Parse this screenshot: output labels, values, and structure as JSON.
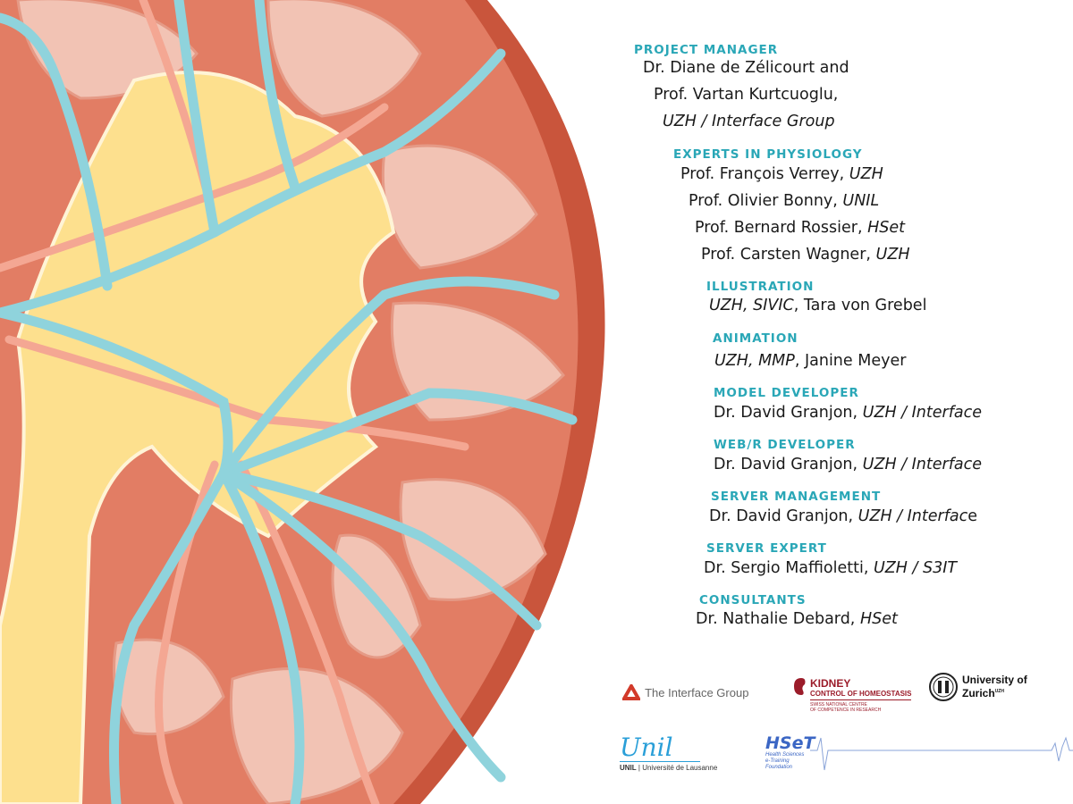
{
  "colors": {
    "heading": "#2aa7b7",
    "capsule": "#c9553c",
    "cortex": "#e27d64",
    "lobe": "#f2c3b4",
    "pelvis": "#fde08e",
    "vein": "#8fd3dc",
    "artery": "#f4a793"
  },
  "credits": [
    {
      "heading": "PROJECT MANAGER",
      "lines": [
        [
          {
            "t": "Dr. Diane de Zélicourt and",
            "i": false
          }
        ],
        [
          {
            "t": "Prof. Vartan Kurtcuoglu,",
            "i": false
          }
        ],
        [
          {
            "t": "UZH / Interface Group",
            "i": true
          }
        ]
      ]
    },
    {
      "heading": "EXPERTS IN PHYSIOLOGY",
      "lines": [
        [
          {
            "t": "Prof. François Verrey, ",
            "i": false
          },
          {
            "t": "UZH",
            "i": true
          }
        ],
        [
          {
            "t": "Prof. Olivier Bonny, ",
            "i": false
          },
          {
            "t": "UNIL",
            "i": true
          }
        ],
        [
          {
            "t": "Prof. Bernard Rossier, ",
            "i": false
          },
          {
            "t": "HSet",
            "i": true
          }
        ],
        [
          {
            "t": "Prof. Carsten Wagner, ",
            "i": false
          },
          {
            "t": "UZH",
            "i": true
          }
        ]
      ]
    },
    {
      "heading": "ILLUSTRATION",
      "lines": [
        [
          {
            "t": "UZH, SIVIC",
            "i": true
          },
          {
            "t": ", Tara von Grebel",
            "i": false
          }
        ]
      ]
    },
    {
      "heading": "ANIMATION",
      "lines": [
        [
          {
            "t": "UZH, MMP",
            "i": true
          },
          {
            "t": ", Janine Meyer",
            "i": false
          }
        ]
      ]
    },
    {
      "heading": "MODEL DEVELOPER",
      "lines": [
        [
          {
            "t": "Dr. David Granjon, ",
            "i": false
          },
          {
            "t": "UZH / Interface",
            "i": true
          }
        ]
      ]
    },
    {
      "heading": "WEB/R DEVELOPER",
      "lines": [
        [
          {
            "t": "Dr. David Granjon, ",
            "i": false
          },
          {
            "t": "UZH / Interface",
            "i": true
          }
        ]
      ]
    },
    {
      "heading": "SERVER MANAGEMENT",
      "lines": [
        [
          {
            "t": "Dr. David Granjon, ",
            "i": false
          },
          {
            "t": "UZH / Interfac",
            "i": true
          },
          {
            "t": "e",
            "i": false
          }
        ]
      ]
    },
    {
      "heading": "SERVER EXPERT",
      "lines": [
        [
          {
            "t": "Dr. Sergio Maffioletti, ",
            "i": false
          },
          {
            "t": "UZH / S3IT",
            "i": true
          }
        ]
      ]
    },
    {
      "heading": "CONSULTANTS",
      "lines": [
        [
          {
            "t": "Dr. Nathalie Debard, ",
            "i": false
          },
          {
            "t": "HSet",
            "i": true
          }
        ]
      ]
    }
  ],
  "logos": {
    "interface": "The Interface Group",
    "kidney_title": "KIDNEY",
    "kidney_sub": "CONTROL OF HOMEOSTASIS",
    "kidney_small1": "SWISS NATIONAL CENTRE",
    "kidney_small2": "OF COMPETENCE IN RESEARCH",
    "uzh1": "University of",
    "uzh2": "Zurich",
    "uzh_sup": "UZH",
    "unil_script": "Unil",
    "unil_caption_bold": "UNIL",
    "unil_caption": "| Université de Lausanne",
    "hset": "HSeT",
    "hset_sub1": "Health Sciences",
    "hset_sub2": "e-Training",
    "hset_sub3": "Foundation"
  }
}
